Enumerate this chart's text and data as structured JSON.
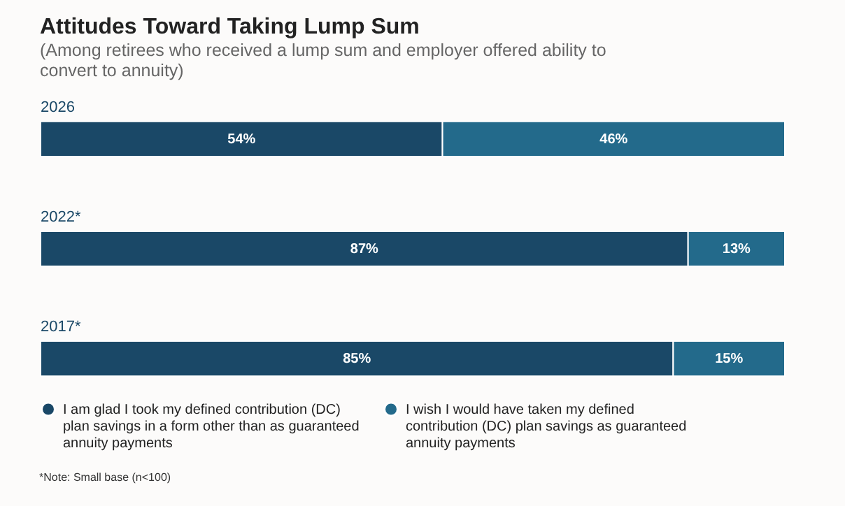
{
  "chart_data": {
    "type": "bar",
    "orientation": "horizontal",
    "stacked": true,
    "title": "Attitudes Toward Taking Lump Sum",
    "subtitle": "(Among retirees who received a lump sum and employer offered ability to convert to annuity)",
    "categories": [
      "2026",
      "2022*",
      "2017*"
    ],
    "series": [
      {
        "name": "I am glad I took my defined contribution (DC) plan savings in a form other than as guaranteed annuity payments",
        "color": "#1a4867",
        "values": [
          54,
          87,
          85
        ],
        "value_labels": [
          "54%",
          "87%",
          "85%"
        ]
      },
      {
        "name": "I wish I would have taken my defined contribution (DC) plan savings as guaranteed annuity payments",
        "color": "#236a8b",
        "values": [
          46,
          13,
          15
        ],
        "value_labels": [
          "46%",
          "13%",
          "15%"
        ]
      }
    ],
    "legend": "bottom",
    "annotations": [
      "*Note: Small base (n<100)"
    ]
  }
}
